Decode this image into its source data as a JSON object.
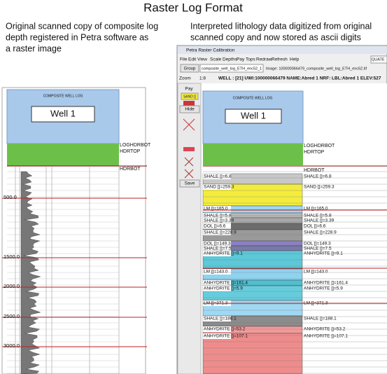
{
  "title": "Raster Log Format",
  "left_caption": [
    "Original scanned copy of composite log",
    "depth registered in Petra software as",
    "a raster image"
  ],
  "right_caption": [
    "Interpreted lithology data digitized from original",
    "scanned copy and now stored as ascii digits"
  ],
  "scanned_log": {
    "header": "COMPOSITE WELL LOG",
    "well": "Well 1",
    "markers": [
      "LOGHDRBOT",
      "HDRTOP",
      "HDRBOT"
    ],
    "depths": [
      "500.0",
      "1500.0",
      "2000.0",
      "2500.0",
      "3000.0"
    ]
  },
  "window": {
    "title": "Petra Raster Calibration",
    "menu": [
      "File",
      "Edit",
      "View",
      "Scale",
      "Depths",
      "Pay",
      "Tops",
      "Redraw",
      "Refresh",
      "Help"
    ],
    "group_button": "Group",
    "group_value": "composite_well_log_ETH_enc52_1",
    "image": "Image: 100000066479_composite_well_log_ETH_enc52.tif",
    "quate": "QUATE",
    "zoom_label": "Zoom",
    "zoom_value": "1:8",
    "well_info": "WELL : [21] UWI:100000066479 NAME:Abred 1 NRF: LBL:Abred 1 ELEV:527",
    "sidebar": {
      "pay": "Pay",
      "sand": "SAND []",
      "hide": "Hide",
      "save": "Save"
    },
    "header": "COMPOSITE WELL LOG",
    "well": "Well 1",
    "markers": [
      "LOGHDRBOT",
      "HDRTOP",
      "HDRBOT"
    ],
    "layers": [
      {
        "label": "SHALE []=6.8",
        "color": "#c8c8c8"
      },
      {
        "label": "SAND []=259.3",
        "color": "#f3ec3c"
      },
      {
        "label": "LM []=165.0",
        "color": "#9fd8f2"
      },
      {
        "label": "SHALE []=5.8",
        "color": "#b8b8b8"
      },
      {
        "label": "SHALE []=3.39",
        "color": "#a8a8a8"
      },
      {
        "label": "DOL []=6.6",
        "color": "#6c6c6c"
      },
      {
        "label": "SHALE []=228.9",
        "color": "#9a9a9a"
      },
      {
        "label": "DOL []=149.3",
        "color": "#8a80c4"
      },
      {
        "label": "SHALE []=7.5",
        "color": "#7a7aa8"
      },
      {
        "label": "ANHYDRITE []=9.1",
        "color": "#5cc8d8"
      },
      {
        "label": "LM []=143.0",
        "color": "#8fd3f0"
      },
      {
        "label": "ANHYDRITE []=161.4",
        "color": "#4fbfd0"
      },
      {
        "label": "ANHYDRITE []=5.9",
        "color": "#66ccdc"
      },
      {
        "label": "LM []=371.3",
        "color": "#9fd8f2"
      },
      {
        "label": "SHALE []=188.1",
        "color": "#8c8c8c"
      },
      {
        "label": "ANHYDRITE []=53.2",
        "color": "#f29a9a"
      },
      {
        "label": "ANHYDRITE []=107.1",
        "color": "#ee8c8c"
      }
    ]
  }
}
